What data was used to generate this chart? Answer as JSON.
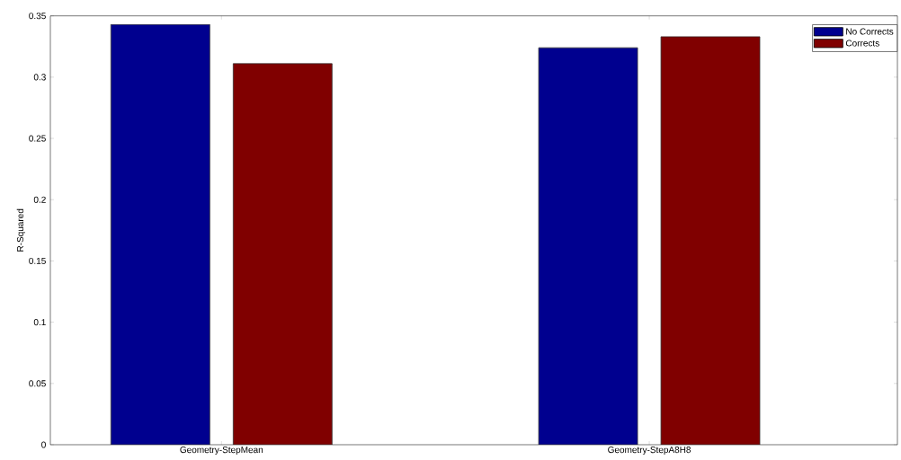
{
  "chart_data": {
    "type": "bar",
    "ylabel": "R-Squared",
    "categories": [
      "Geometry-StepMean",
      "Geometry-StepA8H8"
    ],
    "series": [
      {
        "name": "No Corrects",
        "color": "#00008f",
        "values": [
          0.343,
          0.324
        ]
      },
      {
        "name": "Corrects",
        "color": "#800000",
        "values": [
          0.311,
          0.333
        ]
      }
    ],
    "ylim": [
      0,
      0.35
    ],
    "yticks": [
      0,
      0.05,
      0.1,
      0.15,
      0.2,
      0.25,
      0.3,
      0.35
    ],
    "grid": false,
    "legend": "top right"
  }
}
